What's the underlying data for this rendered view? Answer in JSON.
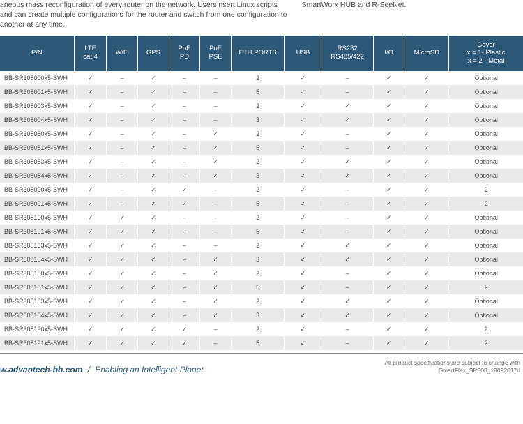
{
  "top": {
    "left": "aneous mass reconfiguration of every router on the network. Users nsert Linux scripts and can create multiple configurations for the router and switch from one configuration to another at any time.",
    "right": "SmartWorx HUB and R-SeeNet."
  },
  "columns": [
    "P/N",
    "LTE\ncat.4",
    "WiFi",
    "GPS",
    "PoE\nPD",
    "PoE\nPSE",
    "ETH PORTS",
    "USB",
    "RS232\nRS485/422",
    "I/O",
    "MicroSD",
    "Cover\nx = 1- Plastic\nx = 2 - Metal"
  ],
  "colClasses": [
    "col-pn",
    "col-lte",
    "col-wifi",
    "col-gps",
    "col-pd",
    "col-pse",
    "col-eth",
    "col-usb",
    "col-rs",
    "col-io",
    "col-sd",
    "col-cov"
  ],
  "rows": [
    [
      "BB-SR308000x5-SWH",
      "✓",
      "–",
      "✓",
      "–",
      "–",
      "2",
      "✓",
      "–",
      "✓",
      "✓",
      "Optional"
    ],
    [
      "BB-SR308001x5-SWH",
      "✓",
      "–",
      "✓",
      "–",
      "–",
      "5",
      "✓",
      "–",
      "✓",
      "✓",
      "Optional"
    ],
    [
      "BB-SR308003x5-SWH",
      "✓",
      "–",
      "✓",
      "–",
      "–",
      "2",
      "✓",
      "✓",
      "✓",
      "✓",
      "Optional"
    ],
    [
      "BB-SR308004x5-SWH",
      "✓",
      "–",
      "✓",
      "–",
      "–",
      "3",
      "✓",
      "✓",
      "✓",
      "✓",
      "Optional"
    ],
    [
      "BB-SR308080x5-SWH",
      "✓",
      "–",
      "✓",
      "–",
      "✓",
      "2",
      "✓",
      "–",
      "✓",
      "✓",
      "Optional"
    ],
    [
      "BB-SR308081x5-SWH",
      "✓",
      "–",
      "✓",
      "–",
      "✓",
      "5",
      "✓",
      "–",
      "✓",
      "✓",
      "Optional"
    ],
    [
      "BB-SR308083x5-SWH",
      "✓",
      "–",
      "✓",
      "–",
      "✓",
      "2",
      "✓",
      "✓",
      "✓",
      "✓",
      "Optional"
    ],
    [
      "BB-SR308084x5-SWH",
      "✓",
      "–",
      "✓",
      "–",
      "✓",
      "3",
      "✓",
      "✓",
      "✓",
      "✓",
      "Optional"
    ],
    [
      "BB-SR308090x5-SWH",
      "✓",
      "–",
      "✓",
      "✓",
      "–",
      "2",
      "✓",
      "–",
      "✓",
      "✓",
      "2"
    ],
    [
      "BB-SR308091x5-SWH",
      "✓",
      "–",
      "✓",
      "✓",
      "–",
      "5",
      "✓",
      "–",
      "✓",
      "✓",
      "2"
    ],
    [
      "BB-SR308100x5-SWH",
      "✓",
      "✓",
      "✓",
      "–",
      "–",
      "2",
      "✓",
      "–",
      "✓",
      "✓",
      "Optional"
    ],
    [
      "BB-SR308101x5-SWH",
      "✓",
      "✓",
      "✓",
      "–",
      "–",
      "5",
      "✓",
      "–",
      "✓",
      "✓",
      "Optional"
    ],
    [
      "BB-SR308103x5-SWH",
      "✓",
      "✓",
      "✓",
      "–",
      "–",
      "2",
      "✓",
      "✓",
      "✓",
      "✓",
      "Optional"
    ],
    [
      "BB-SR308104x5-SWH",
      "✓",
      "✓",
      "✓",
      "–",
      "✓",
      "3",
      "✓",
      "✓",
      "✓",
      "✓",
      "Optional"
    ],
    [
      "BB-SR308180x5-SWH",
      "✓",
      "✓",
      "✓",
      "–",
      "✓",
      "2",
      "✓",
      "–",
      "✓",
      "✓",
      "Optional"
    ],
    [
      "BB-SR308181x5-SWH",
      "✓",
      "✓",
      "✓",
      "–",
      "✓",
      "5",
      "✓",
      "–",
      "✓",
      "✓",
      "2"
    ],
    [
      "BB-SR308183x5-SWH",
      "✓",
      "✓",
      "✓",
      "–",
      "✓",
      "2",
      "✓",
      "✓",
      "✓",
      "✓",
      "Optional"
    ],
    [
      "BB-SR308184x5-SWH",
      "✓",
      "✓",
      "✓",
      "–",
      "✓",
      "3",
      "✓",
      "✓",
      "✓",
      "✓",
      "Optional"
    ],
    [
      "BB-SR308190x5-SWH",
      "✓",
      "✓",
      "✓",
      "✓",
      "–",
      "2",
      "✓",
      "–",
      "✓",
      "✓",
      "2"
    ],
    [
      "BB-SR308191x5-SWH",
      "✓",
      "✓",
      "✓",
      "✓",
      "–",
      "5",
      "✓",
      "–",
      "✓",
      "✓",
      "2"
    ]
  ],
  "footer": {
    "domain": "w.advantech-bb.com",
    "sep": "/",
    "tagline": "Enabling an Intelligent Planet",
    "right1": "All product specifications are subject to change with",
    "right2": "SmartFlex_SR308_19092017d"
  }
}
